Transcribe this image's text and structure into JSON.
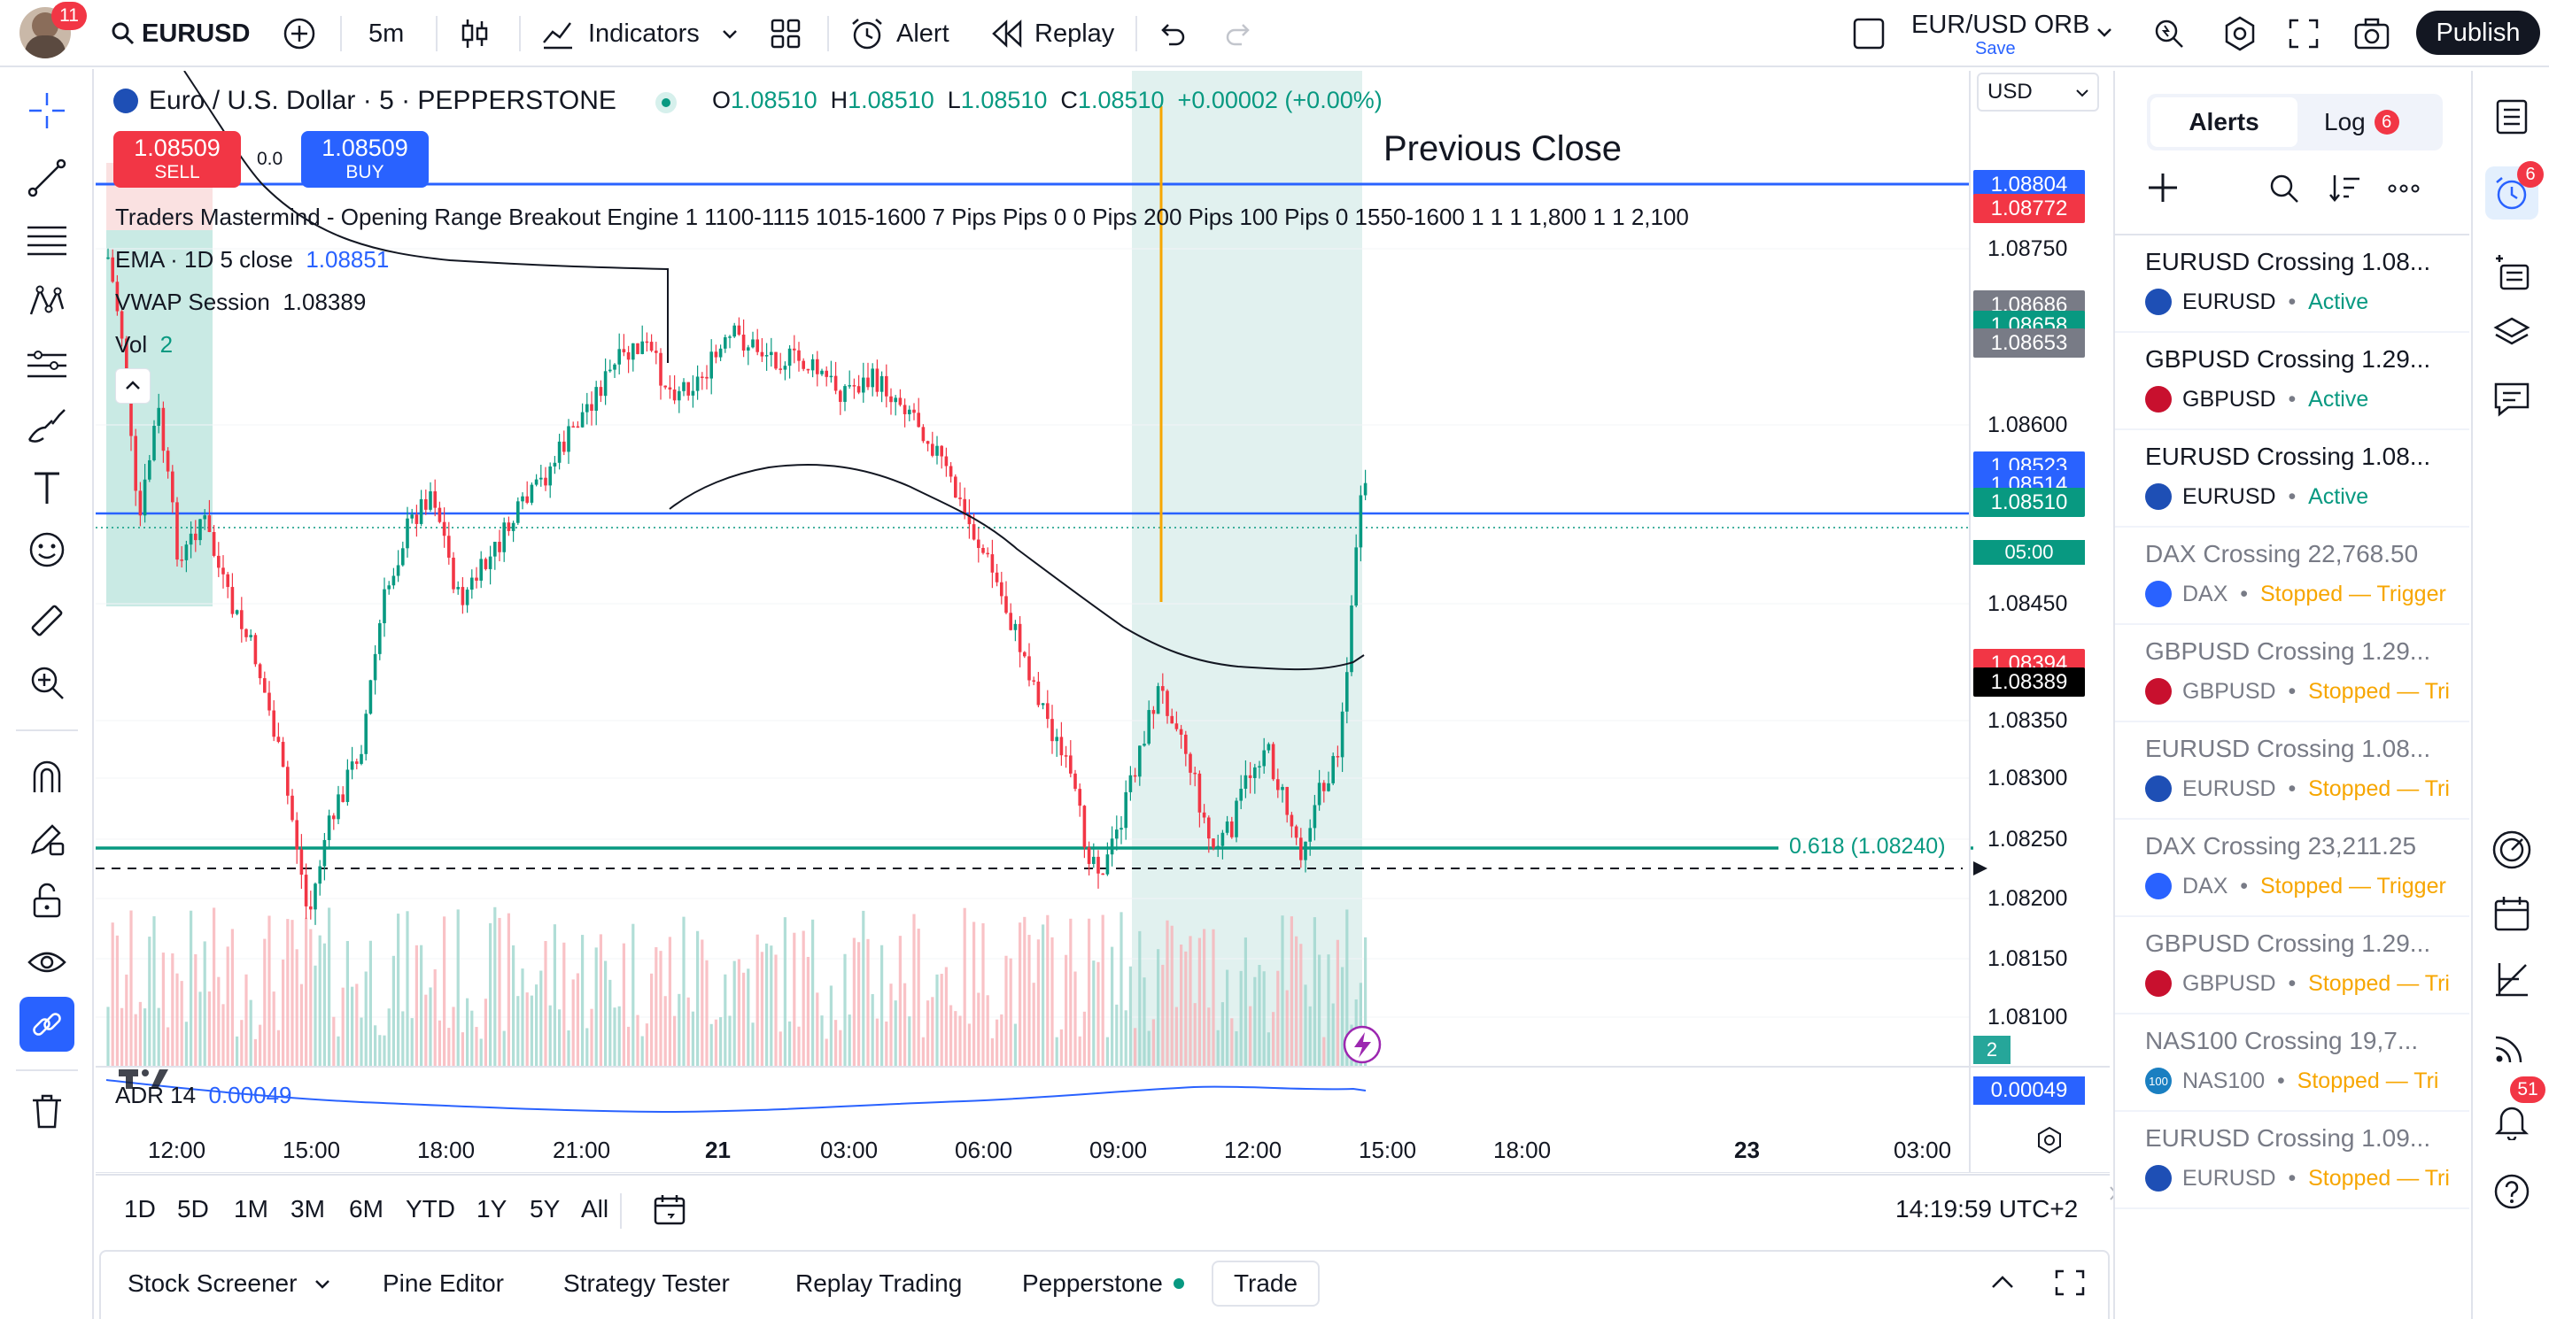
{
  "topbar": {
    "avatar_badge": "11",
    "symbol": "EURUSD",
    "interval": "5m",
    "indicators_label": "Indicators",
    "alert_label": "Alert",
    "replay_label": "Replay",
    "layout_name": "EUR/USD ORB",
    "save_label": "Save",
    "publish_label": "Publish"
  },
  "legend": {
    "title": "Euro / U.S. Dollar · 5 · PEPPERSTONE",
    "o_label": "O",
    "o": "1.08510",
    "h_label": "H",
    "h": "1.08510",
    "l_label": "L",
    "l": "1.08510",
    "c_label": "C",
    "c": "1.08510",
    "change": "+0.00002 (+0.00%)",
    "sell_price": "1.08509",
    "sell_label": "SELL",
    "buy_price": "1.08509",
    "buy_label": "BUY",
    "spread": "0.0",
    "indicator_line": "Traders Mastermind - Opening Range Breakout Engine 1 1100-1115 1015-1600 7 Pips Pips 0 0 Pips 200 Pips 100 Pips 0 1550-1600 1 1 1 1,800 1 1 2,100",
    "ema_label": "EMA · 1D 5 close",
    "ema_value": "1.08851",
    "vwap_label": "VWAP Session",
    "vwap_value": "1.08389",
    "vol_label": "Vol",
    "vol_value": "2",
    "previous_close": "Previous Close",
    "fib_label": "0.618 (1.08240)",
    "adr_label": "ADR 14",
    "adr_value": "0.00049"
  },
  "price_axis": {
    "currency": "USD",
    "ticks": [
      "1.08750",
      "1.08600",
      "1.08450",
      "1.08350",
      "1.08300",
      "1.08250",
      "1.08200",
      "1.08150",
      "1.08100"
    ],
    "tags": [
      {
        "value": "1.08804",
        "color": "#2962ff"
      },
      {
        "value": "1.08772",
        "color": "#f23645"
      },
      {
        "value": "1.08686",
        "color": "#787b86"
      },
      {
        "value": "1.08658",
        "color": "#089981"
      },
      {
        "value": "1.08653",
        "color": "#787b86"
      },
      {
        "value": "1.08523",
        "color": "#2962ff"
      },
      {
        "value": "1.08514",
        "color": "#2962ff"
      },
      {
        "value": "1.08510",
        "color": "#089981"
      },
      {
        "value": "1.08394",
        "color": "#f23645"
      },
      {
        "value": "1.08389",
        "color": "#000000"
      }
    ],
    "countdown": "05:00",
    "vol_tag": "2",
    "adr_tag": "0.00049"
  },
  "time_axis": {
    "ticks": [
      "12:00",
      "15:00",
      "18:00",
      "21:00",
      "21",
      "03:00",
      "06:00",
      "09:00",
      "12:00",
      "15:00",
      "18:00",
      "23",
      "03:00"
    ]
  },
  "bottom_bar": {
    "ranges": [
      "1D",
      "5D",
      "1M",
      "3M",
      "6M",
      "YTD",
      "1Y",
      "5Y",
      "All"
    ],
    "clock": "14:19:59 UTC+2"
  },
  "bottom_tabs": {
    "stock_screener": "Stock Screener",
    "pine_editor": "Pine Editor",
    "strategy_tester": "Strategy Tester",
    "replay_trading": "Replay Trading",
    "pepperstone": "Pepperstone",
    "trade": "Trade"
  },
  "alerts_panel": {
    "tab_alerts": "Alerts",
    "tab_log": "Log",
    "log_count": "6",
    "items": [
      {
        "title": "EURUSD Crossing 1.08...",
        "symbol": "EURUSD",
        "status": "Active",
        "status_color": "#089981",
        "flag": "eu"
      },
      {
        "title": "GBPUSD Crossing 1.29...",
        "symbol": "GBPUSD",
        "status": "Active",
        "status_color": "#089981",
        "flag": "gb"
      },
      {
        "title": "EURUSD Crossing 1.08...",
        "symbol": "EURUSD",
        "status": "Active",
        "status_color": "#089981",
        "flag": "eu"
      },
      {
        "title": "DAX Crossing 22,768.50",
        "symbol": "DAX",
        "status": "Stopped — Trigger",
        "status_color": "#f7a600",
        "flag": "dax"
      },
      {
        "title": "GBPUSD Crossing 1.29...",
        "symbol": "GBPUSD",
        "status": "Stopped — Tri",
        "status_color": "#f7a600",
        "flag": "gb"
      },
      {
        "title": "EURUSD Crossing 1.08...",
        "symbol": "EURUSD",
        "status": "Stopped — Tri",
        "status_color": "#f7a600",
        "flag": "eu"
      },
      {
        "title": "DAX Crossing 23,211.25",
        "symbol": "DAX",
        "status": "Stopped — Trigger",
        "status_color": "#f7a600",
        "flag": "dax"
      },
      {
        "title": "GBPUSD Crossing 1.29...",
        "symbol": "GBPUSD",
        "status": "Stopped — Tri",
        "status_color": "#f7a600",
        "flag": "gb"
      },
      {
        "title": "NAS100 Crossing 19,7...",
        "symbol": "NAS100",
        "status": "Stopped — Tri",
        "status_color": "#f7a600",
        "flag": "nas",
        "flag_text": "100"
      },
      {
        "title": "EURUSD Crossing 1.09...",
        "symbol": "EURUSD",
        "status": "Stopped — Tri",
        "status_color": "#f7a600",
        "flag": "eu"
      }
    ]
  },
  "right_strip": {
    "alerts_badge": "6",
    "notifications_badge": "51"
  },
  "colors": {
    "accent": "#2962ff",
    "up": "#089981",
    "down": "#f23645",
    "warning": "#f7a600"
  }
}
